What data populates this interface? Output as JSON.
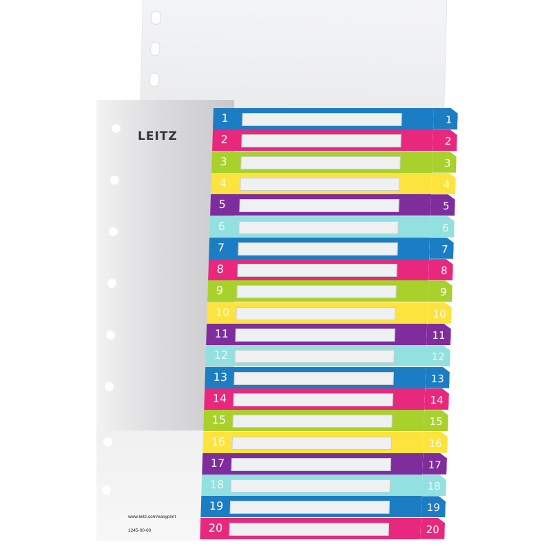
{
  "brand": {
    "logo_text": "LEITZ",
    "url": "www.leitz.com/easyprint",
    "product_code": "1245-00-00"
  },
  "colors": {
    "blue": "#1b7dc3",
    "pink": "#e8287d",
    "green": "#a8d12c",
    "yellow": "#fde33d",
    "purple": "#7f2c9c",
    "cyan": "#92e0df"
  },
  "tabs": [
    {
      "label": "1",
      "color": "#1b7dc3"
    },
    {
      "label": "2",
      "color": "#e8287d"
    },
    {
      "label": "3",
      "color": "#a8d12c"
    },
    {
      "label": "4",
      "color": "#fde33d"
    },
    {
      "label": "5",
      "color": "#7f2c9c"
    },
    {
      "label": "6",
      "color": "#92e0df"
    },
    {
      "label": "7",
      "color": "#1b7dc3"
    },
    {
      "label": "8",
      "color": "#e8287d"
    },
    {
      "label": "9",
      "color": "#a8d12c"
    },
    {
      "label": "10",
      "color": "#fde33d"
    },
    {
      "label": "11",
      "color": "#7f2c9c"
    },
    {
      "label": "12",
      "color": "#92e0df"
    },
    {
      "label": "13",
      "color": "#1b7dc3"
    },
    {
      "label": "14",
      "color": "#e8287d"
    },
    {
      "label": "15",
      "color": "#a8d12c"
    },
    {
      "label": "16",
      "color": "#fde33d"
    },
    {
      "label": "17",
      "color": "#7f2c9c"
    },
    {
      "label": "18",
      "color": "#92e0df"
    },
    {
      "label": "19",
      "color": "#1b7dc3"
    },
    {
      "label": "20",
      "color": "#e8287d"
    }
  ]
}
